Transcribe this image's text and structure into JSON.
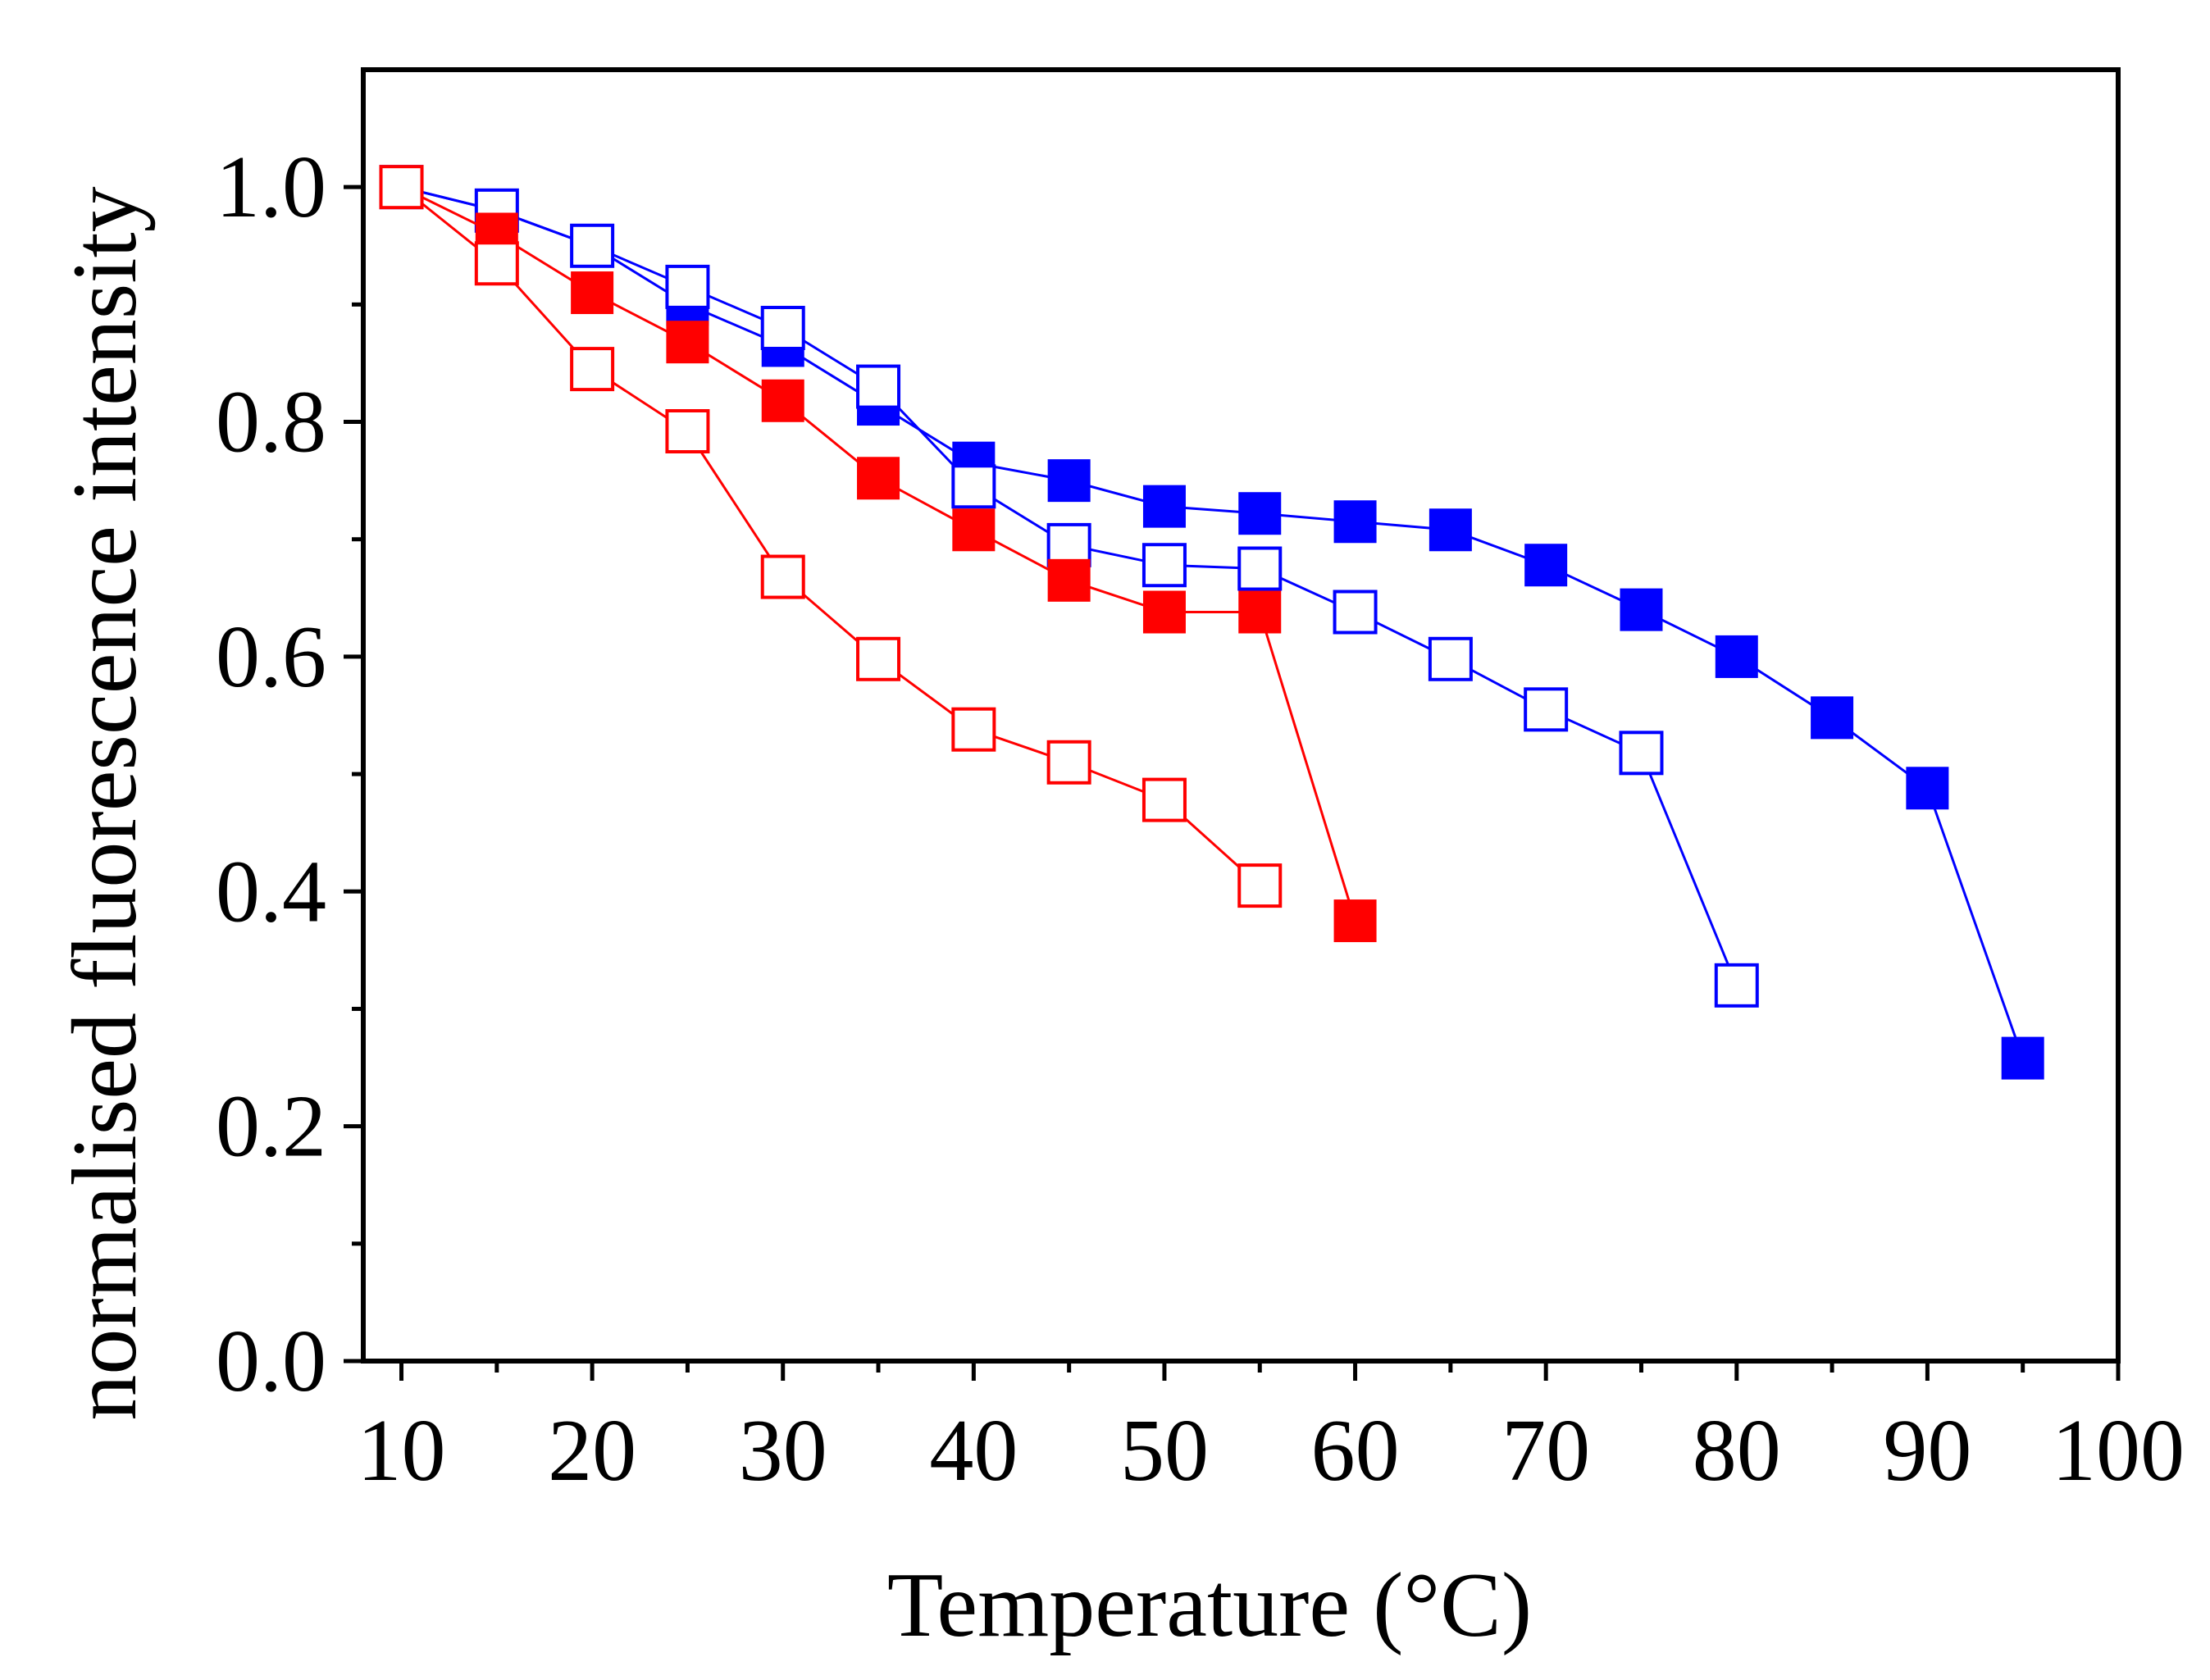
{
  "chart_data": {
    "type": "scatter",
    "title": "",
    "xlabel": "Temperature (°C)",
    "ylabel": "normalised fluorescence intensity",
    "xlim": [
      8,
      100
    ],
    "ylim": [
      0.0,
      1.1
    ],
    "x_ticks": [
      10,
      20,
      30,
      40,
      50,
      60,
      70,
      80,
      90,
      100
    ],
    "x_tick_labels": [
      "10",
      "20",
      "30",
      "40",
      "50",
      "60",
      "70",
      "80",
      "90",
      "100"
    ],
    "y_ticks": [
      0.0,
      0.2,
      0.4,
      0.6,
      0.8,
      1.0
    ],
    "y_tick_labels": [
      "0.0",
      "0.2",
      "0.4",
      "0.6",
      "0.8",
      "1.0"
    ],
    "y_minor_ticks": [
      0.1,
      0.3,
      0.5,
      0.7,
      0.9
    ],
    "grid": false,
    "legend": "none",
    "series": [
      {
        "name": "blue filled",
        "color": "#0000ff",
        "marker": "square-filled",
        "x": [
          10,
          15,
          20,
          25,
          30,
          35,
          40,
          45,
          50,
          55,
          60,
          65,
          70,
          75,
          80,
          85,
          90,
          95
        ],
        "y": [
          1.0,
          0.98,
          0.95,
          0.9,
          0.865,
          0.815,
          0.765,
          0.75,
          0.728,
          0.722,
          0.715,
          0.708,
          0.678,
          0.64,
          0.6,
          0.548,
          0.488,
          0.258
        ]
      },
      {
        "name": "blue open",
        "color": "#0000ff",
        "marker": "square-open",
        "x": [
          10,
          15,
          20,
          25,
          30,
          35,
          40,
          45,
          50,
          55,
          60,
          65,
          70,
          75,
          80
        ],
        "y": [
          1.0,
          0.98,
          0.95,
          0.915,
          0.88,
          0.83,
          0.745,
          0.695,
          0.678,
          0.675,
          0.638,
          0.598,
          0.555,
          0.518,
          0.32
        ]
      },
      {
        "name": "red filled",
        "color": "#ff0000",
        "marker": "square-filled",
        "x": [
          10,
          15,
          20,
          25,
          30,
          35,
          40,
          45,
          50,
          55,
          60
        ],
        "y": [
          1.0,
          0.96,
          0.91,
          0.868,
          0.818,
          0.752,
          0.708,
          0.665,
          0.638,
          0.638,
          0.375
        ]
      },
      {
        "name": "red open",
        "color": "#ff0000",
        "marker": "square-open",
        "x": [
          10,
          15,
          20,
          25,
          30,
          35,
          40,
          45,
          50,
          55
        ],
        "y": [
          1.0,
          0.935,
          0.845,
          0.792,
          0.668,
          0.598,
          0.538,
          0.51,
          0.478,
          0.405
        ]
      }
    ]
  }
}
